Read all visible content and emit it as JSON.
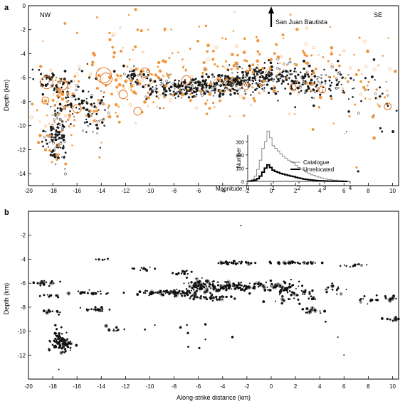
{
  "chart_data": [
    {
      "panel": "a",
      "type": "scatter",
      "xlabel": "",
      "ylabel": "Depth (km)",
      "xlim": [
        -20,
        10.5
      ],
      "ylim": [
        0,
        -15
      ],
      "x_ticks": [
        -20,
        -18,
        -16,
        -14,
        -12,
        -10,
        -8,
        -6,
        -4,
        -2,
        0,
        2,
        4,
        6,
        8,
        10
      ],
      "y_ticks": [
        0,
        -2,
        -4,
        -6,
        -8,
        -10,
        -12,
        -14
      ],
      "annotations": {
        "nw": "NW",
        "se": "SE",
        "arrow_label": "San Juan Bautista",
        "arrow_x": 0
      },
      "series_colors": {
        "relocated": "#1a1a1a",
        "unrelocated": "#f0963c"
      },
      "clusters": [
        {
          "x": -18.2,
          "y": -6.3,
          "sx": 0.6,
          "sy": 0.5,
          "n": 50,
          "series": "relocated"
        },
        {
          "x": -17.6,
          "y": -10.8,
          "sx": 0.45,
          "sy": 1.3,
          "n": 120,
          "series": "relocated"
        },
        {
          "x": -16.5,
          "y": -7.8,
          "sx": 0.8,
          "sy": 1.2,
          "n": 60,
          "series": "relocated"
        },
        {
          "x": -14.5,
          "y": -8.5,
          "sx": 0.6,
          "sy": 1.3,
          "n": 50,
          "series": "relocated"
        },
        {
          "x": -11.3,
          "y": -5.9,
          "sx": 0.6,
          "sy": 0.4,
          "n": 40,
          "series": "relocated"
        },
        {
          "x": -9.5,
          "y": -6.8,
          "sx": 0.7,
          "sy": 0.6,
          "n": 45,
          "series": "relocated"
        },
        {
          "x": -7.2,
          "y": -6.9,
          "sx": 0.9,
          "sy": 0.4,
          "n": 110,
          "series": "relocated"
        },
        {
          "x": -5.2,
          "y": -6.6,
          "sx": 0.8,
          "sy": 0.5,
          "n": 110,
          "series": "relocated"
        },
        {
          "x": -3.0,
          "y": -6.4,
          "sx": 0.9,
          "sy": 0.5,
          "n": 120,
          "series": "relocated"
        },
        {
          "x": -1.0,
          "y": -6.0,
          "sx": 0.8,
          "sy": 0.6,
          "n": 90,
          "series": "relocated"
        },
        {
          "x": 1.0,
          "y": -5.8,
          "sx": 0.9,
          "sy": 0.7,
          "n": 90,
          "series": "relocated"
        },
        {
          "x": 3.0,
          "y": -6.5,
          "sx": 0.9,
          "sy": 0.6,
          "n": 70,
          "series": "relocated"
        },
        {
          "x": 5.5,
          "y": -6.5,
          "sx": 0.9,
          "sy": 0.7,
          "n": 40,
          "series": "relocated"
        },
        {
          "x": 8.8,
          "y": -7.6,
          "sx": 1.0,
          "sy": 1.5,
          "n": 30,
          "series": "relocated"
        },
        {
          "x": -17.8,
          "y": -8.5,
          "sx": 1.3,
          "sy": 2.2,
          "n": 70,
          "series": "unrelocated"
        },
        {
          "x": -14.0,
          "y": -7.2,
          "sx": 1.5,
          "sy": 2.0,
          "n": 50,
          "series": "unrelocated"
        },
        {
          "x": -10.5,
          "y": -6.5,
          "sx": 2.0,
          "sy": 1.5,
          "n": 60,
          "series": "unrelocated"
        },
        {
          "x": -5.0,
          "y": -6.2,
          "sx": 3.0,
          "sy": 1.6,
          "n": 90,
          "series": "unrelocated"
        },
        {
          "x": 2.0,
          "y": -5.8,
          "sx": 3.0,
          "sy": 1.6,
          "n": 80,
          "series": "unrelocated"
        },
        {
          "x": 8.0,
          "y": -7.0,
          "sx": 2.0,
          "sy": 2.0,
          "n": 40,
          "series": "unrelocated"
        },
        {
          "x": -5.0,
          "y": -2.5,
          "sx": 9.0,
          "sy": 1.2,
          "n": 45,
          "series": "unrelocated"
        }
      ],
      "large_events": [
        {
          "x": -13.8,
          "y": -5.8,
          "m": 3.4
        },
        {
          "x": -13.6,
          "y": -6.1,
          "m": 2.9
        },
        {
          "x": -18.5,
          "y": -6.4,
          "m": 3.0
        },
        {
          "x": -17.2,
          "y": -6.6,
          "m": 2.6
        },
        {
          "x": -10.4,
          "y": -5.6,
          "m": 2.6
        },
        {
          "x": -7.0,
          "y": -6.2,
          "m": 2.4
        },
        {
          "x": -12.2,
          "y": -7.4,
          "m": 2.3
        },
        {
          "x": -16.0,
          "y": -8.6,
          "m": 2.3
        },
        {
          "x": -18.6,
          "y": -7.9,
          "m": 2.0
        },
        {
          "x": -11.0,
          "y": -8.8,
          "m": 2.2
        },
        {
          "x": -2.1,
          "y": -6.7,
          "m": 2.0
        },
        {
          "x": 4.2,
          "y": -7.0,
          "m": 2.0
        },
        {
          "x": 1.8,
          "y": -6.8,
          "m": 1.9
        },
        {
          "x": 9.6,
          "y": -8.4,
          "m": 2.0
        }
      ],
      "inset": {
        "type": "line",
        "xlabel": "Magnitude:",
        "ylabel": "Number",
        "xlim": [
          0,
          4
        ],
        "ylim": [
          0,
          350
        ],
        "x_ticks": [
          0,
          1,
          2,
          3,
          4
        ],
        "y_ticks": [
          0,
          100,
          200,
          300
        ],
        "bins": [
          0.1,
          0.2,
          0.3,
          0.4,
          0.5,
          0.6,
          0.7,
          0.8,
          0.9,
          1.0,
          1.1,
          1.2,
          1.3,
          1.4,
          1.5,
          1.6,
          1.7,
          1.8,
          1.9,
          2.0,
          2.1,
          2.2,
          2.3,
          2.4,
          2.5,
          2.6,
          2.7,
          2.8,
          2.9,
          3.0,
          3.2,
          3.4,
          3.6,
          3.8
        ],
        "series": [
          {
            "name": "Catalogue",
            "color": "#8c8c8c",
            "width": 1,
            "values": [
              5,
              15,
              40,
              90,
              160,
              250,
              300,
              380,
              330,
              270,
              250,
              230,
              210,
              190,
              175,
              160,
              150,
              140,
              120,
              105,
              95,
              85,
              70,
              60,
              50,
              45,
              38,
              32,
              26,
              20,
              14,
              9,
              5,
              2
            ]
          },
          {
            "name": "Unrelocated",
            "color": "#000000",
            "width": 2,
            "values": [
              2,
              5,
              10,
              20,
              40,
              70,
              100,
              125,
              105,
              85,
              75,
              68,
              60,
              55,
              50,
              45,
              40,
              36,
              30,
              26,
              22,
              18,
              15,
              12,
              10,
              8,
              6,
              5,
              4,
              3,
              2,
              1,
              1,
              0
            ]
          }
        ]
      }
    },
    {
      "panel": "b",
      "type": "scatter",
      "xlabel": "Along-strike distance (km)",
      "ylabel": "Depth (km)",
      "xlim": [
        -20,
        10.5
      ],
      "ylim": [
        0,
        -14
      ],
      "x_ticks": [
        -20,
        -18,
        -16,
        -14,
        -12,
        -10,
        -8,
        -6,
        -4,
        -2,
        0,
        2,
        4,
        6,
        8,
        10
      ],
      "y_ticks": [
        -2,
        -4,
        -6,
        -8,
        -10,
        -12
      ],
      "series_colors": {
        "relocated": "#111111"
      },
      "clusters": [
        {
          "x": -18.8,
          "y": -6.0,
          "sx": 0.5,
          "sy": 0.1,
          "n": 18,
          "series": "relocated"
        },
        {
          "x": -18.2,
          "y": -7.0,
          "sx": 0.5,
          "sy": 0.1,
          "n": 10,
          "series": "relocated"
        },
        {
          "x": -18.0,
          "y": -8.4,
          "sx": 0.6,
          "sy": 0.1,
          "n": 12,
          "series": "relocated"
        },
        {
          "x": -17.4,
          "y": -10.8,
          "sx": 0.4,
          "sy": 0.6,
          "n": 70,
          "series": "relocated"
        },
        {
          "x": -17.0,
          "y": -11.1,
          "sx": 0.3,
          "sy": 0.2,
          "n": 40,
          "series": "relocated"
        },
        {
          "x": -14.5,
          "y": -8.2,
          "sx": 0.5,
          "sy": 0.1,
          "n": 25,
          "series": "relocated"
        },
        {
          "x": -15.0,
          "y": -6.8,
          "sx": 0.8,
          "sy": 0.1,
          "n": 20,
          "series": "relocated"
        },
        {
          "x": -14.0,
          "y": -4.0,
          "sx": 0.4,
          "sy": 0.05,
          "n": 6,
          "series": "relocated"
        },
        {
          "x": -13.0,
          "y": -9.8,
          "sx": 1.0,
          "sy": 0.1,
          "n": 12,
          "series": "relocated"
        },
        {
          "x": -10.5,
          "y": -4.8,
          "sx": 0.5,
          "sy": 0.1,
          "n": 10,
          "series": "relocated"
        },
        {
          "x": -9.5,
          "y": -6.8,
          "sx": 0.8,
          "sy": 0.1,
          "n": 30,
          "series": "relocated"
        },
        {
          "x": -7.5,
          "y": -6.8,
          "sx": 0.6,
          "sy": 0.15,
          "n": 45,
          "series": "relocated"
        },
        {
          "x": -7.3,
          "y": -5.2,
          "sx": 0.4,
          "sy": 0.1,
          "n": 12,
          "series": "relocated"
        },
        {
          "x": -5.5,
          "y": -6.2,
          "sx": 0.8,
          "sy": 0.3,
          "n": 70,
          "series": "relocated"
        },
        {
          "x": -5.0,
          "y": -7.2,
          "sx": 1.0,
          "sy": 0.1,
          "n": 40,
          "series": "relocated"
        },
        {
          "x": -3.0,
          "y": -4.3,
          "sx": 0.9,
          "sy": 0.05,
          "n": 30,
          "series": "relocated"
        },
        {
          "x": -3.0,
          "y": -6.3,
          "sx": 1.2,
          "sy": 0.2,
          "n": 80,
          "series": "relocated"
        },
        {
          "x": 0.5,
          "y": -6.3,
          "sx": 0.9,
          "sy": 0.2,
          "n": 50,
          "series": "relocated"
        },
        {
          "x": 2.0,
          "y": -4.3,
          "sx": 1.0,
          "sy": 0.05,
          "n": 35,
          "series": "relocated"
        },
        {
          "x": 2.0,
          "y": -7.0,
          "sx": 1.0,
          "sy": 0.3,
          "n": 40,
          "series": "relocated"
        },
        {
          "x": 3.5,
          "y": -8.3,
          "sx": 0.6,
          "sy": 0.1,
          "n": 15,
          "series": "relocated"
        },
        {
          "x": 5.0,
          "y": -6.5,
          "sx": 0.5,
          "sy": 0.2,
          "n": 15,
          "series": "relocated"
        },
        {
          "x": 7.0,
          "y": -4.5,
          "sx": 0.6,
          "sy": 0.05,
          "n": 12,
          "series": "relocated"
        },
        {
          "x": 8.5,
          "y": -7.3,
          "sx": 0.6,
          "sy": 0.2,
          "n": 14,
          "series": "relocated"
        },
        {
          "x": 9.8,
          "y": -7.2,
          "sx": 0.4,
          "sy": 0.1,
          "n": 10,
          "series": "relocated"
        },
        {
          "x": 9.9,
          "y": -9.0,
          "sx": 0.4,
          "sy": 0.1,
          "n": 8,
          "series": "relocated"
        },
        {
          "x": -4.0,
          "y": -10.0,
          "sx": 4.0,
          "sy": 1.0,
          "n": 12,
          "series": "relocated"
        }
      ],
      "isolated": [
        {
          "x": -2.5,
          "y": -1.2
        },
        {
          "x": -17.5,
          "y": -13.2
        },
        {
          "x": 6.0,
          "y": -12.0
        },
        {
          "x": 5.5,
          "y": -10.5
        }
      ]
    }
  ]
}
